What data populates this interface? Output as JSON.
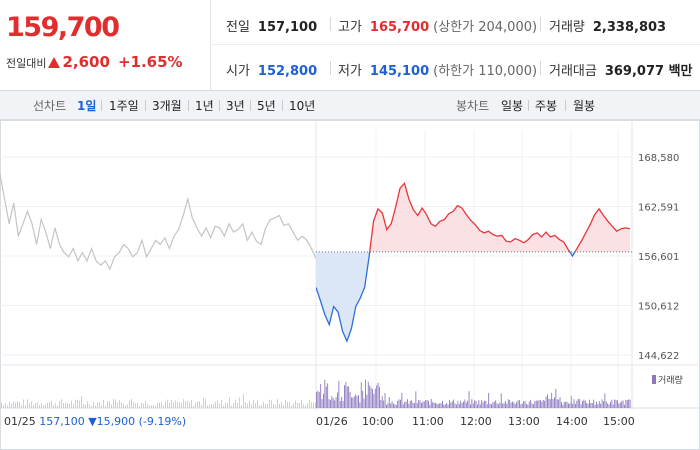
{
  "quote": {
    "price": "159,700",
    "change_label": "전일대비",
    "change": "2,600",
    "change_pct": "+1.65%"
  },
  "stats": {
    "prev_close": {
      "label": "전일",
      "value": "157,100"
    },
    "high": {
      "label": "고가",
      "value": "165,700",
      "sub": "(상한가 204,000)"
    },
    "volume": {
      "label": "거래량",
      "value": "2,338,803"
    },
    "open": {
      "label": "시가",
      "value": "152,800"
    },
    "low": {
      "label": "저가",
      "value": "145,100",
      "sub": "(하한가 110,000)"
    },
    "turnover": {
      "label": "거래대금",
      "value": "369,077 백만"
    }
  },
  "toolbar": {
    "line_label": "선차트",
    "periods": [
      "1일",
      "1주일",
      "3개월",
      "1년",
      "3년",
      "5년",
      "10년"
    ],
    "active_period": "1일",
    "candle_label": "봉차트",
    "candles": [
      "일봉",
      "주봉",
      "월봉"
    ]
  },
  "chart_data": {
    "type": "line",
    "y_ticks": [
      "168,580",
      "162,591",
      "156,601",
      "150,612",
      "144,622"
    ],
    "ylim": [
      144622,
      168580
    ],
    "reference_price": 157100,
    "x_ticks": [
      "01/25",
      "01/26",
      "10:00",
      "11:00",
      "12:00",
      "13:00",
      "14:00",
      "15:00"
    ],
    "volume_legend": "거래량",
    "prev_day_note": {
      "date": "01/25",
      "value": "157,100",
      "change": "▼15,900",
      "pct": "(-9.19%)"
    },
    "colors": {
      "up": "#e8363a",
      "down": "#2d6fd6",
      "prev": "#c4c4c4",
      "volume": "#8d78c0",
      "up_fill": "#fbe1e3",
      "down_fill": "#dbe6f6"
    },
    "prev_series": [
      166.5,
      163.5,
      160.5,
      163,
      159,
      160.5,
      162,
      160.5,
      158,
      161,
      159.5,
      157.5,
      160,
      158,
      157,
      156.5,
      157.5,
      156,
      157,
      156,
      157.5,
      156,
      155.5,
      156,
      155,
      156.5,
      157,
      158,
      157.5,
      156.5,
      157,
      158.5,
      156.5,
      157.5,
      158.5,
      158,
      158.8,
      157.5,
      159,
      159.8,
      161.5,
      163.5,
      161.2,
      160,
      159,
      160,
      158.8,
      160.2,
      160,
      159,
      160.5,
      159.5,
      159.8,
      160.5,
      158.5,
      159.5,
      158.4,
      158,
      160,
      161,
      161.2,
      161.5,
      160.3,
      160.5,
      159.5,
      158.5,
      159,
      158.5,
      157.5,
      156.3
    ],
    "cur_series": [
      152.8,
      151.2,
      149.5,
      148.3,
      150.5,
      149.8,
      147.5,
      146.3,
      147.8,
      150.5,
      151.5,
      152.8,
      156.5,
      160.8,
      162.3,
      161.8,
      159.8,
      160.5,
      162.5,
      164.8,
      165.4,
      163.5,
      162.2,
      161.5,
      162.4,
      161.6,
      160.5,
      160.2,
      160.8,
      161,
      161.7,
      162,
      162.7,
      162.4,
      161.6,
      160.9,
      160.4,
      159.7,
      159.4,
      159.6,
      159.2,
      159,
      159.1,
      158.4,
      158.3,
      158.7,
      158.5,
      158.2,
      158.6,
      159.2,
      159.4,
      158.9,
      159.5,
      158.9,
      159.1,
      158.6,
      158.3,
      157.4,
      156.6,
      157.5,
      158.4,
      159.4,
      160.4,
      161.6,
      162.3,
      161.5,
      160.8,
      160.2,
      159.6,
      159.9,
      160,
      159.9
    ]
  }
}
